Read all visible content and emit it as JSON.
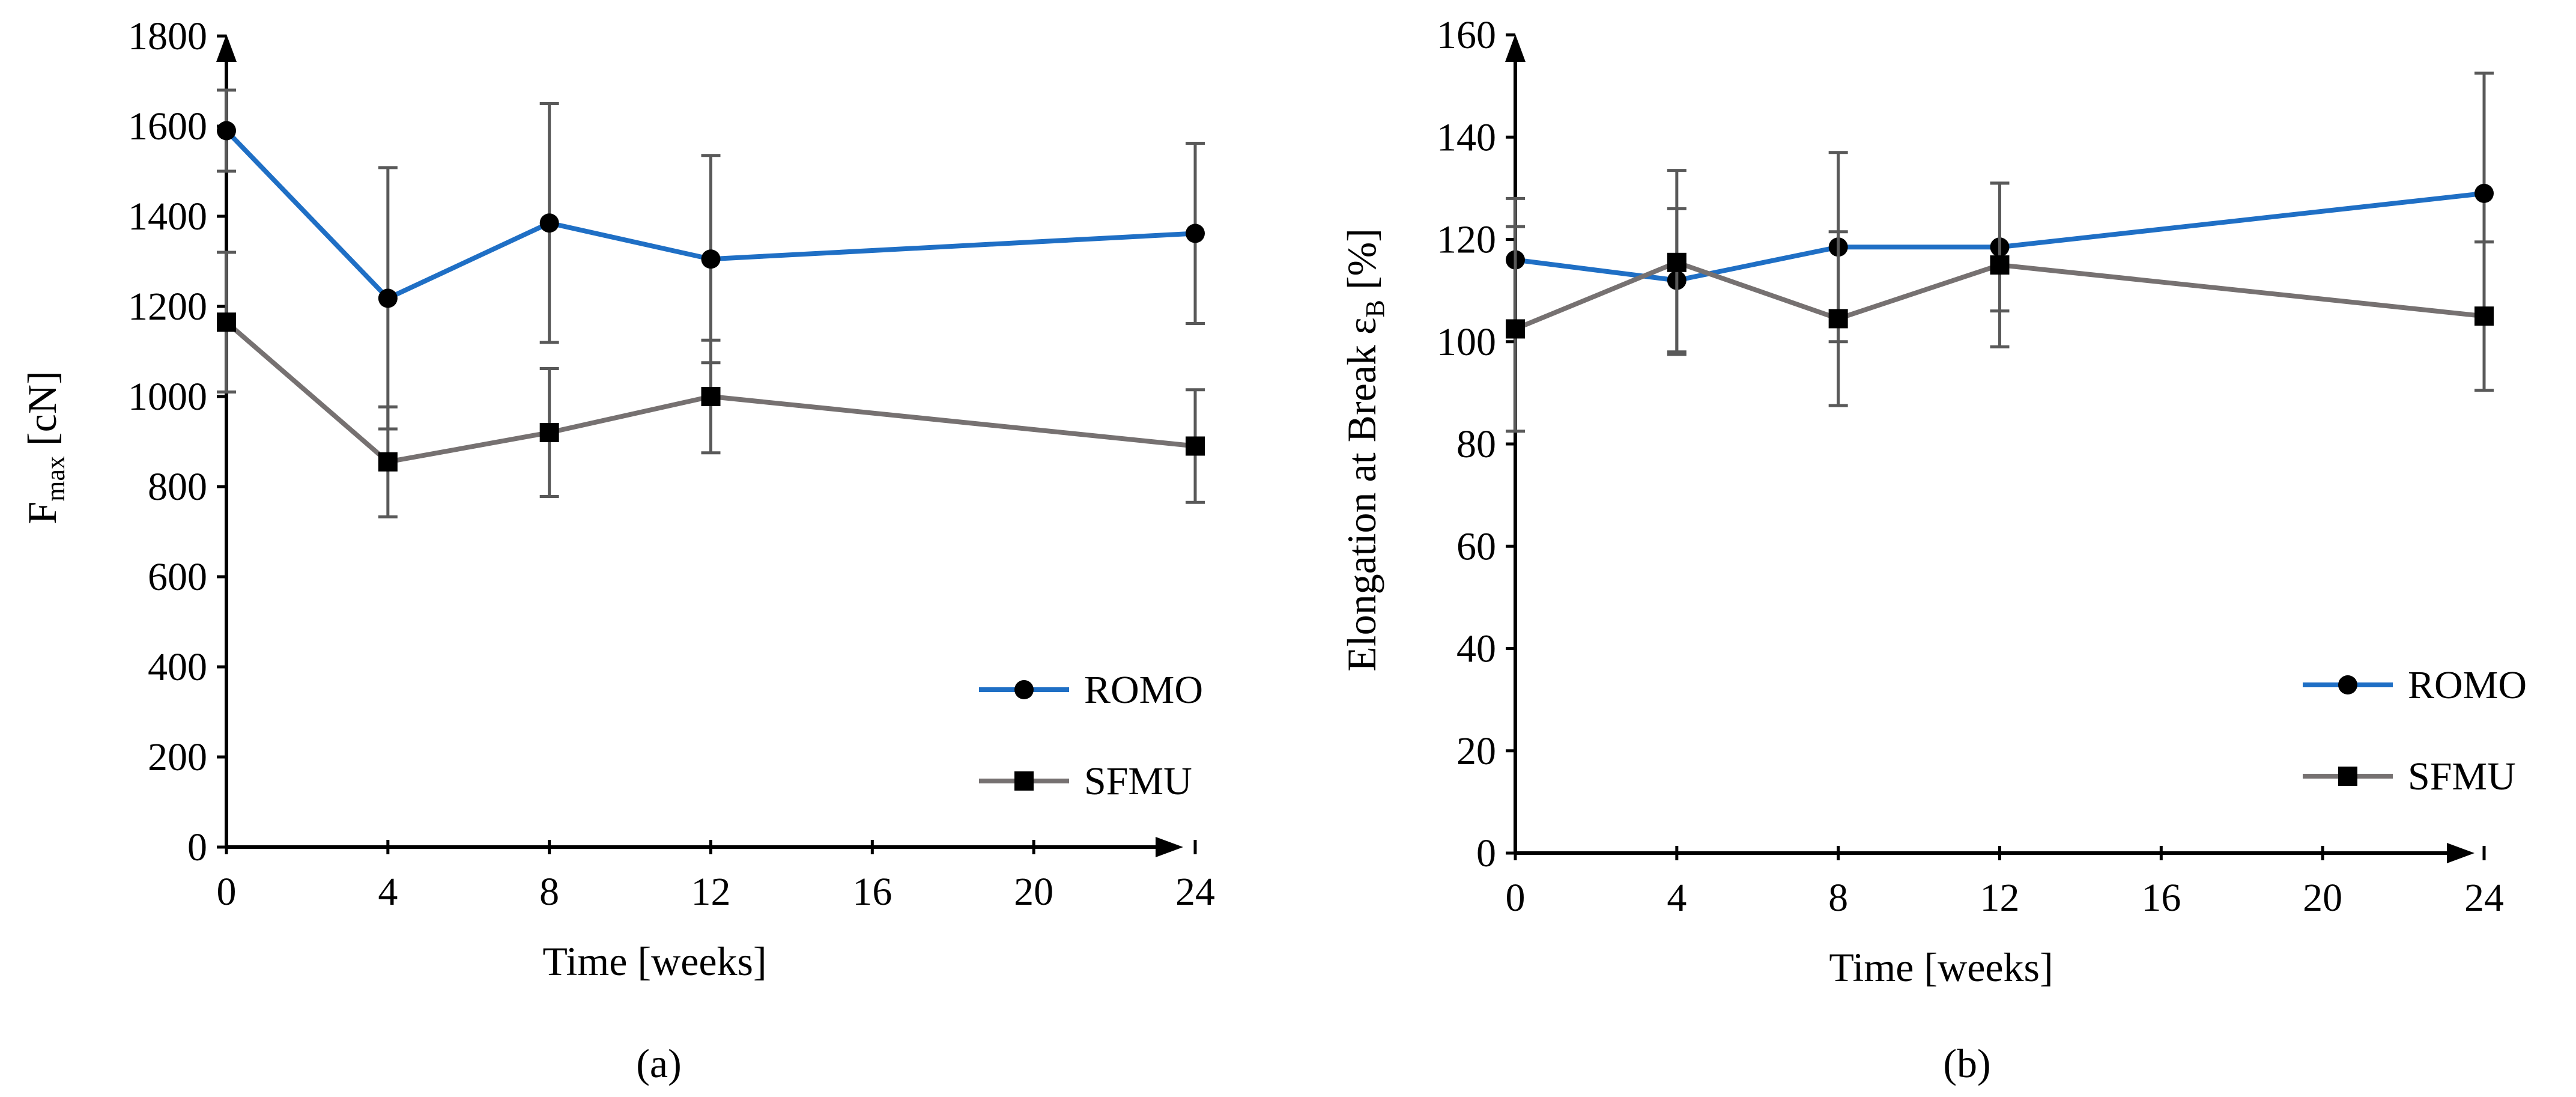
{
  "chart_data": [
    {
      "type": "line",
      "panel_label": "(a)",
      "xlabel": "Time [weeks]",
      "ylabel_main": "F",
      "ylabel_sub": "max",
      "ylabel_unit": " [cN]",
      "xlim": [
        0,
        24
      ],
      "ylim": [
        0,
        1800
      ],
      "xticks": [
        0,
        4,
        8,
        12,
        16,
        20,
        24
      ],
      "yticks": [
        0,
        200,
        400,
        600,
        800,
        1000,
        1200,
        1400,
        1600,
        1800
      ],
      "grid": false,
      "legend_position": "lower-right",
      "series": [
        {
          "name": "ROMO",
          "color": "#1F6FC5",
          "marker": "circle",
          "x": [
            0,
            4,
            8,
            12,
            24
          ],
          "y": [
            1590,
            1218,
            1385,
            1305,
            1362
          ],
          "yerr": [
            90,
            290,
            265,
            230,
            200
          ]
        },
        {
          "name": "SFMU",
          "color": "#767171",
          "marker": "square",
          "x": [
            0,
            4,
            8,
            12,
            24
          ],
          "y": [
            1165,
            855,
            920,
            1000,
            890
          ],
          "yerr": [
            155,
            122,
            142,
            125,
            125
          ]
        }
      ]
    },
    {
      "type": "line",
      "panel_label": "(b)",
      "xlabel": "Time [weeks]",
      "ylabel_main": "Elongation at Break ε",
      "ylabel_sub": "B",
      "ylabel_unit": " [%]",
      "xlim": [
        0,
        24
      ],
      "ylim": [
        0,
        160
      ],
      "xticks": [
        0,
        4,
        8,
        12,
        16,
        20,
        24
      ],
      "yticks": [
        0,
        20,
        40,
        60,
        80,
        100,
        120,
        140,
        160
      ],
      "grid": false,
      "legend_position": "lower-right",
      "series": [
        {
          "name": "ROMO",
          "color": "#1F6FC5",
          "marker": "circle",
          "x": [
            0,
            4,
            8,
            12,
            24
          ],
          "y": [
            116,
            112,
            118.5,
            118.5,
            129
          ],
          "yerr": [
            12,
            14,
            18.5,
            12.5,
            23.5
          ]
        },
        {
          "name": "SFMU",
          "color": "#767171",
          "marker": "square",
          "x": [
            0,
            4,
            8,
            12,
            24
          ],
          "y": [
            102.5,
            115.5,
            104.5,
            115,
            105
          ],
          "yerr": [
            20,
            18,
            17,
            16,
            14.5
          ]
        }
      ]
    }
  ]
}
